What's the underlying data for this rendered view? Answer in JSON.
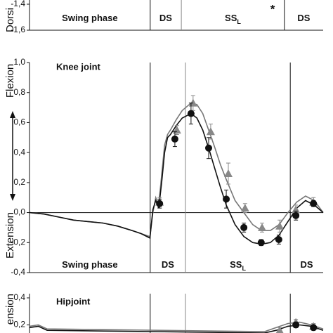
{
  "chart_data": [
    {
      "type": "line",
      "y_labels": [
        "Dorsi"
      ],
      "ylim": [
        -1.6,
        -1.4
      ],
      "yticks": [
        {
          "value": -1.4,
          "label": "-1,4"
        },
        {
          "value": -1.6,
          "label": "-1,6"
        }
      ],
      "xlim": [
        0,
        100
      ],
      "phase_bounds": [
        41.1,
        51.7,
        86.8
      ],
      "phases": [
        {
          "label": "Swing phase"
        },
        {
          "label": "DS"
        },
        {
          "label": "SS",
          "subscript": "L"
        },
        {
          "label": "DS"
        }
      ],
      "annotation": "*",
      "curves": [],
      "series": []
    },
    {
      "type": "line",
      "title": "Knee joint",
      "y_labels": [
        "Flexion",
        "Extension"
      ],
      "ylim": [
        -0.4,
        1.0
      ],
      "yticks": [
        {
          "value": 1.0,
          "label": "1,0"
        },
        {
          "value": 0.8,
          "label": "0,8"
        },
        {
          "value": 0.6,
          "label": "0,6"
        },
        {
          "value": 0.4,
          "label": "0,4"
        },
        {
          "value": 0.2,
          "label": "0,2"
        },
        {
          "value": 0.0,
          "label": "0,0"
        },
        {
          "value": -0.2,
          "label": "-0,2"
        },
        {
          "value": -0.4,
          "label": "-0,4"
        }
      ],
      "xlim": [
        0,
        100
      ],
      "phase_bounds": [
        41.1,
        53.1,
        88.8
      ],
      "phases": [
        {
          "label": "Swing phase"
        },
        {
          "label": "DS"
        },
        {
          "label": "SS",
          "subscript": "L"
        },
        {
          "label": "DS"
        }
      ],
      "curves": [
        {
          "color": "#777777",
          "x": [
            0,
            5,
            10,
            15,
            20,
            25,
            30,
            35,
            38,
            41,
            42,
            43,
            44,
            45,
            46,
            47,
            48,
            50,
            52,
            55,
            57,
            59,
            61,
            63,
            65,
            67,
            70,
            73,
            76,
            79,
            82,
            85,
            88,
            91,
            94,
            97,
            100
          ],
          "values": [
            0,
            -0.01,
            -0.03,
            -0.05,
            -0.06,
            -0.07,
            -0.09,
            -0.12,
            -0.14,
            -0.16,
            0.0,
            0.1,
            0.05,
            0.25,
            0.45,
            0.52,
            0.55,
            0.62,
            0.68,
            0.73,
            0.72,
            0.66,
            0.55,
            0.44,
            0.32,
            0.22,
            0.08,
            0.0,
            -0.08,
            -0.12,
            -0.12,
            -0.08,
            0.0,
            0.07,
            0.11,
            0.08,
            0.0
          ]
        },
        {
          "color": "#111111",
          "x": [
            0,
            5,
            10,
            15,
            20,
            25,
            30,
            35,
            38,
            41,
            42,
            43,
            44,
            45,
            46,
            47,
            48,
            50,
            52,
            55,
            57,
            59,
            61,
            63,
            65,
            67,
            70,
            73,
            76,
            79,
            82,
            85,
            88,
            91,
            94,
            97,
            100
          ],
          "values": [
            0,
            -0.01,
            -0.03,
            -0.05,
            -0.06,
            -0.07,
            -0.09,
            -0.12,
            -0.14,
            -0.17,
            0.02,
            0.08,
            0.03,
            0.2,
            0.4,
            0.5,
            0.52,
            0.58,
            0.63,
            0.66,
            0.63,
            0.55,
            0.43,
            0.3,
            0.17,
            0.05,
            -0.08,
            -0.16,
            -0.2,
            -0.21,
            -0.2,
            -0.15,
            -0.06,
            0.03,
            0.08,
            0.05,
            0.0
          ]
        }
      ],
      "series": [
        {
          "color": "#888888",
          "marker": "triangle",
          "x": [
            44.3,
            50.2,
            55.7,
            61.7,
            67.7,
            73.4,
            79.2,
            85.2,
            90.7,
            96.7
          ],
          "values": [
            0.07,
            0.55,
            0.73,
            0.54,
            0.26,
            0.03,
            -0.1,
            -0.09,
            0.02,
            0.07
          ],
          "errors": [
            0.03,
            0.03,
            0.05,
            0.05,
            0.07,
            0.03,
            0.03,
            0.04,
            0.03,
            0.03
          ]
        },
        {
          "color": "#111111",
          "marker": "circle",
          "x": [
            44.3,
            49.5,
            55.0,
            61.0,
            67.0,
            73.0,
            78.9,
            84.9,
            90.7,
            96.7
          ],
          "values": [
            0.06,
            0.49,
            0.66,
            0.43,
            0.09,
            -0.1,
            -0.2,
            -0.18,
            -0.02,
            0.06
          ],
          "errors": [
            0.03,
            0.05,
            0.07,
            0.07,
            0.06,
            0.03,
            0.02,
            0.03,
            0.03,
            0.02
          ]
        }
      ]
    },
    {
      "type": "line",
      "title": "Hipjoint",
      "y_labels": [
        "ension"
      ],
      "ylim": [
        0.14,
        0.4
      ],
      "yticks": [
        {
          "value": 0.4,
          "label": "0,4"
        },
        {
          "value": 0.2,
          "label": "0,2"
        }
      ],
      "xlim": [
        0,
        100
      ],
      "phase_bounds": [
        41.1,
        53.1,
        88.8
      ],
      "phases": [],
      "curves": [
        {
          "color": "#777777",
          "x": [
            0,
            3,
            6,
            80,
            84,
            88,
            92,
            96,
            100
          ],
          "values": [
            0.19,
            0.2,
            0.17,
            0.15,
            0.18,
            0.21,
            0.22,
            0.2,
            0.17
          ]
        },
        {
          "color": "#111111",
          "x": [
            0,
            3,
            6,
            80,
            84,
            88,
            92,
            96,
            100
          ],
          "values": [
            0.18,
            0.19,
            0.16,
            0.14,
            0.16,
            0.19,
            0.2,
            0.19,
            0.16
          ]
        }
      ],
      "series": [
        {
          "color": "#888888",
          "marker": "triangle",
          "x": [
            85.2,
            90.7,
            96.7
          ],
          "values": [
            0.16,
            0.22,
            0.19
          ],
          "errors": [
            0.02,
            0.02,
            0.02
          ]
        },
        {
          "color": "#111111",
          "marker": "circle",
          "x": [
            90.7,
            96.7
          ],
          "values": [
            0.2,
            0.18
          ],
          "errors": [
            0.02,
            0.02
          ]
        }
      ]
    }
  ]
}
